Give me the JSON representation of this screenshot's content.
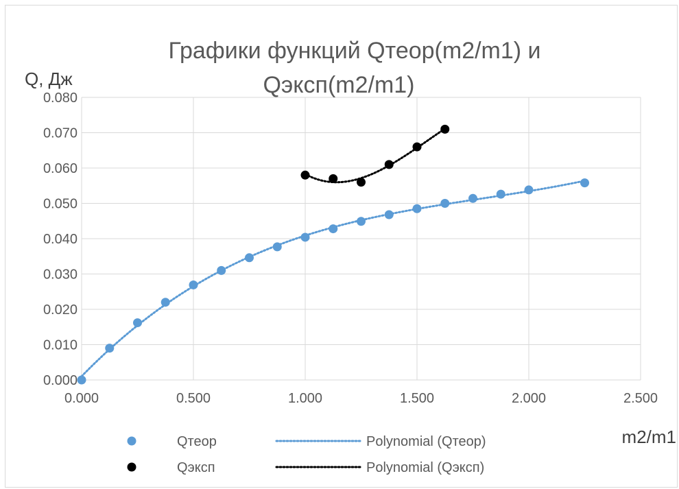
{
  "chart_data": {
    "type": "scatter",
    "title_lines": [
      "Графики функций Qтеор(m2/m1) и",
      "Qэксп(m2/m1)"
    ],
    "xlabel": "m2/m1",
    "ylabel": "Q, Дж",
    "xlim": [
      0,
      2.5
    ],
    "ylim": [
      0,
      0.08
    ],
    "x_ticks": [
      "0.000",
      "0.500",
      "1.000",
      "1.500",
      "2.000",
      "2.500"
    ],
    "y_ticks": [
      "0.000",
      "0.010",
      "0.020",
      "0.030",
      "0.040",
      "0.050",
      "0.060",
      "0.070",
      "0.080"
    ],
    "grid": true,
    "legend_position": "bottom",
    "series": [
      {
        "name": "Qтеор",
        "color": "#5b9bd5",
        "x": [
          0,
          0.125,
          0.25,
          0.375,
          0.5,
          0.625,
          0.75,
          0.875,
          1.0,
          1.125,
          1.25,
          1.375,
          1.5,
          1.625,
          1.75,
          1.875,
          2.0,
          2.25
        ],
        "y": [
          0.0,
          0.009,
          0.0162,
          0.022,
          0.0269,
          0.031,
          0.0346,
          0.0377,
          0.0404,
          0.0428,
          0.0449,
          0.0468,
          0.0485,
          0.05,
          0.0514,
          0.0526,
          0.0538,
          0.0558
        ]
      },
      {
        "name": "Qэксп",
        "color": "#000000",
        "x": [
          1.0,
          1.125,
          1.25,
          1.375,
          1.5,
          1.625
        ],
        "y": [
          0.058,
          0.057,
          0.056,
          0.061,
          0.066,
          0.071
        ]
      }
    ],
    "trendlines": [
      {
        "name": "Polynomial (Qтеор)",
        "color": "#5b9bd5",
        "style": "dotted",
        "fit_series": 0,
        "degree": 3,
        "x_range": [
          0,
          2.25
        ]
      },
      {
        "name": "Polynomial (Qэксп)",
        "color": "#000000",
        "style": "dotted",
        "fit_series": 1,
        "degree": 3,
        "x_range": [
          1.0,
          1.625
        ]
      }
    ]
  }
}
